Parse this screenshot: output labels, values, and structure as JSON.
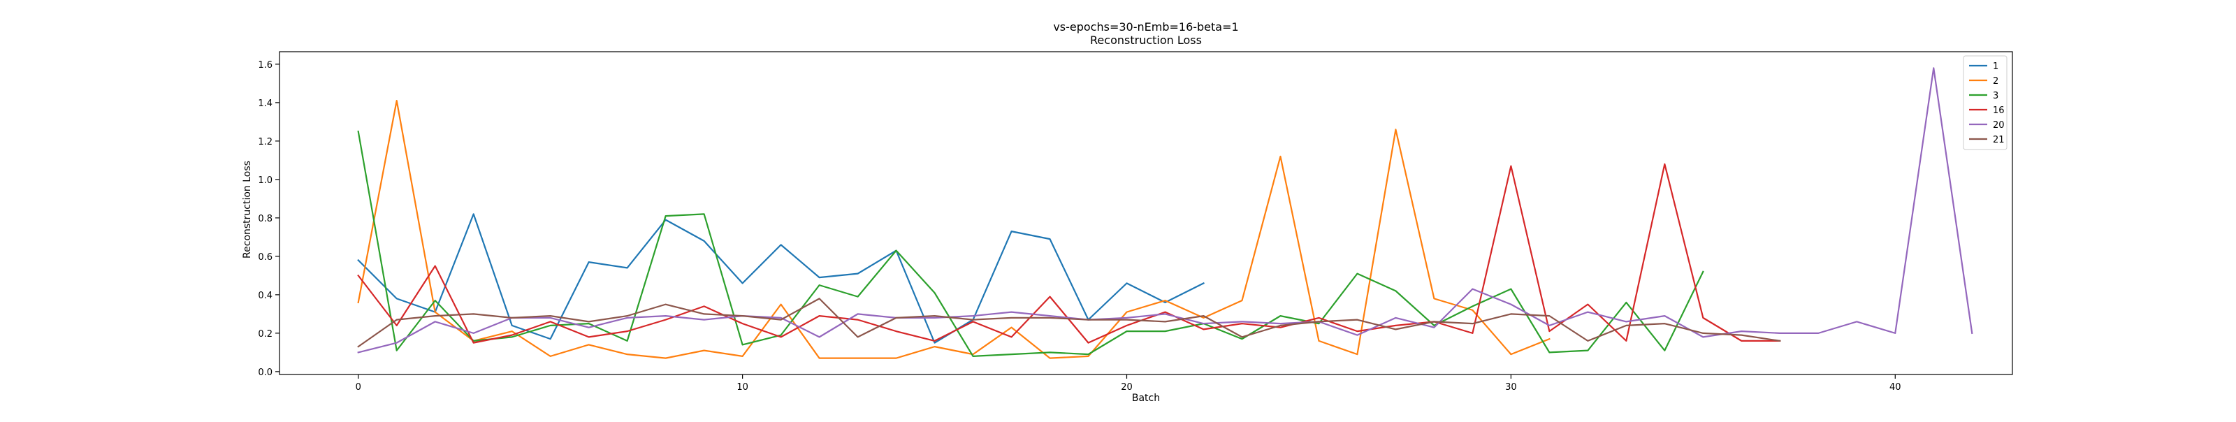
{
  "chart_data": {
    "type": "line",
    "title": "vs-epochs=30-nEmb=16-beta=1",
    "subtitle": "Reconstruction Loss",
    "xlabel": "Batch",
    "ylabel": "Reconstruction Loss",
    "xlim": [
      -2.05,
      43.05
    ],
    "ylim": [
      -0.015,
      1.665
    ],
    "xticks": [
      0,
      10,
      20,
      30,
      40
    ],
    "yticks": [
      0.0,
      0.2,
      0.4,
      0.6,
      0.8,
      1.0,
      1.2,
      1.4,
      1.6
    ],
    "ytick_labels": [
      "0.0",
      "0.2",
      "0.4",
      "0.6",
      "0.8",
      "1.0",
      "1.2",
      "1.4",
      "1.6"
    ],
    "grid": false,
    "legend_position": "top-right",
    "series": [
      {
        "name": "1",
        "color": "#1f77b4",
        "values": [
          0.58,
          0.38,
          0.31,
          0.82,
          0.24,
          0.17,
          0.57,
          0.54,
          0.79,
          0.68,
          0.46,
          0.66,
          0.49,
          0.51,
          0.63,
          0.15,
          0.27,
          0.73,
          0.69,
          0.27,
          0.46,
          0.36,
          0.46
        ]
      },
      {
        "name": "2",
        "color": "#ff7f0e",
        "values": [
          0.36,
          1.41,
          0.31,
          0.16,
          0.21,
          0.08,
          0.14,
          0.09,
          0.07,
          0.11,
          0.08,
          0.35,
          0.07,
          0.07,
          0.07,
          0.13,
          0.09,
          0.23,
          0.07,
          0.08,
          0.31,
          0.37,
          0.28,
          0.37,
          1.12,
          0.16,
          0.09,
          1.26,
          0.38,
          0.32,
          0.09,
          0.17
        ]
      },
      {
        "name": "3",
        "color": "#2ca02c",
        "values": [
          1.25,
          0.11,
          0.37,
          0.16,
          0.18,
          0.24,
          0.25,
          0.16,
          0.81,
          0.82,
          0.14,
          0.19,
          0.45,
          0.39,
          0.63,
          0.41,
          0.08,
          0.09,
          0.1,
          0.09,
          0.21,
          0.21,
          0.25,
          0.17,
          0.29,
          0.25,
          0.51,
          0.42,
          0.24,
          0.34,
          0.43,
          0.1,
          0.11,
          0.36,
          0.11,
          0.52
        ]
      },
      {
        "name": "16",
        "color": "#d62728",
        "values": [
          0.5,
          0.24,
          0.55,
          0.15,
          0.19,
          0.26,
          0.18,
          0.21,
          0.27,
          0.34,
          0.25,
          0.18,
          0.29,
          0.27,
          0.21,
          0.16,
          0.26,
          0.18,
          0.39,
          0.15,
          0.24,
          0.31,
          0.22,
          0.25,
          0.23,
          0.28,
          0.21,
          0.24,
          0.26,
          0.2,
          1.07,
          0.21,
          0.35,
          0.16,
          1.08,
          0.28,
          0.16,
          0.16
        ]
      },
      {
        "name": "20",
        "color": "#9467bd",
        "values": [
          0.1,
          0.15,
          0.26,
          0.2,
          0.28,
          0.28,
          0.23,
          0.28,
          0.29,
          0.27,
          0.29,
          0.28,
          0.18,
          0.3,
          0.28,
          0.28,
          0.29,
          0.31,
          0.29,
          0.27,
          0.28,
          0.3,
          0.25,
          0.26,
          0.25,
          0.26,
          0.19,
          0.28,
          0.23,
          0.43,
          0.35,
          0.24,
          0.31,
          0.26,
          0.29,
          0.18,
          0.21,
          0.2,
          0.2,
          0.26,
          0.2,
          1.58,
          0.2
        ]
      },
      {
        "name": "21",
        "color": "#8c564b",
        "values": [
          0.13,
          0.27,
          0.29,
          0.3,
          0.28,
          0.29,
          0.26,
          0.29,
          0.35,
          0.3,
          0.29,
          0.27,
          0.38,
          0.18,
          0.28,
          0.29,
          0.27,
          0.28,
          0.28,
          0.27,
          0.27,
          0.26,
          0.29,
          0.18,
          0.24,
          0.26,
          0.27,
          0.22,
          0.26,
          0.25,
          0.3,
          0.29,
          0.16,
          0.24,
          0.25,
          0.2,
          0.19,
          0.16
        ]
      }
    ]
  }
}
